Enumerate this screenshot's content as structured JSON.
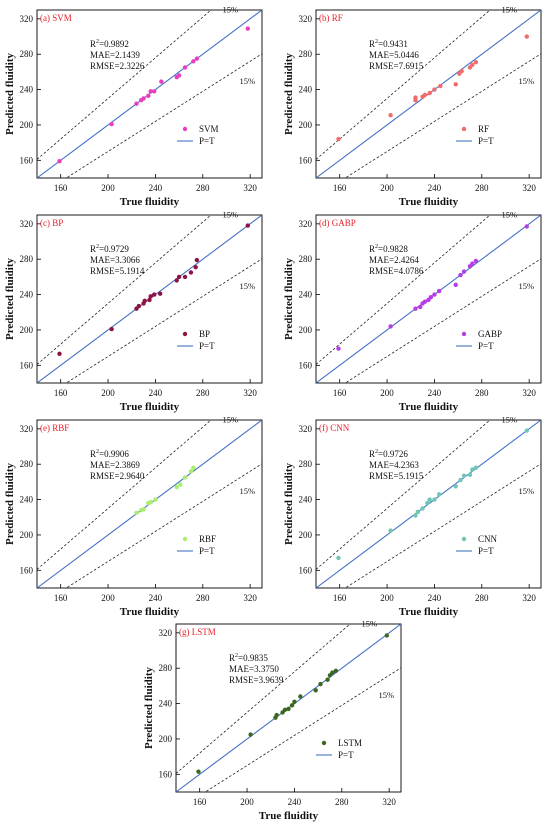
{
  "common": {
    "xlabel": "True fluidity",
    "ylabel": "Predicted fluidity",
    "xlim": [
      140,
      330
    ],
    "ylim": [
      140,
      330
    ],
    "ticks": [
      160,
      200,
      240,
      280,
      320
    ],
    "band_label": "15%",
    "fit_label": "P=T",
    "fit_color": "#4472c4",
    "band_color": "#222222",
    "title_color": "#e8202a",
    "grid": false,
    "legend_position": "bottom-right",
    "stats_position": "top-left"
  },
  "chart_data": [
    {
      "type": "scatter",
      "title": "(a) SVM",
      "stats": [
        "R²=0.9892",
        "MAE=2.1439",
        "RMSE=2.3226"
      ],
      "series": [
        {
          "name": "SVM",
          "color": "#e83fbf",
          "points": [
            [
              159,
              159
            ],
            [
              203,
              201
            ],
            [
              224,
              224
            ],
            [
              228,
              228
            ],
            [
              230,
              230
            ],
            [
              234,
              233
            ],
            [
              236,
              238
            ],
            [
              239,
              238
            ],
            [
              245,
              249
            ],
            [
              258,
              254
            ],
            [
              260,
              256
            ],
            [
              265,
              265
            ],
            [
              272,
              272
            ],
            [
              275,
              275
            ],
            [
              318,
              309
            ]
          ]
        },
        {
          "name": "P=T",
          "kind": "line"
        }
      ]
    },
    {
      "type": "scatter",
      "title": "(b) RF",
      "stats": [
        "R²=0.9431",
        "MAE=5.0446",
        "RMSE=7.6915"
      ],
      "series": [
        {
          "name": "RF",
          "color": "#f26b6b",
          "points": [
            [
              159,
              184
            ],
            [
              203,
              211
            ],
            [
              224,
              228
            ],
            [
              224,
              231
            ],
            [
              230,
              232
            ],
            [
              232,
              234
            ],
            [
              236,
              236
            ],
            [
              240,
              240
            ],
            [
              245,
              244
            ],
            [
              258,
              246
            ],
            [
              261,
              258
            ],
            [
              263,
              261
            ],
            [
              270,
              265
            ],
            [
              272,
              268
            ],
            [
              275,
              271
            ],
            [
              318,
              300
            ]
          ]
        },
        {
          "name": "P=T",
          "kind": "line"
        }
      ]
    },
    {
      "type": "scatter",
      "title": "(c) BP",
      "stats": [
        "R²=0.9729",
        "MAE=3.3066",
        "RMSE=5.1914"
      ],
      "series": [
        {
          "name": "BP",
          "color": "#8b1346",
          "points": [
            [
              159,
              173
            ],
            [
              203,
              201
            ],
            [
              224,
              224
            ],
            [
              226,
              227
            ],
            [
              230,
              230
            ],
            [
              231,
              233
            ],
            [
              235,
              234
            ],
            [
              236,
              238
            ],
            [
              239,
              240
            ],
            [
              244,
              241
            ],
            [
              258,
              256
            ],
            [
              260,
              260
            ],
            [
              265,
              260
            ],
            [
              270,
              265
            ],
            [
              274,
              271
            ],
            [
              275,
              279
            ],
            [
              318,
              318
            ]
          ]
        },
        {
          "name": "P=T",
          "kind": "line"
        }
      ]
    },
    {
      "type": "scatter",
      "title": "(d) GABP",
      "stats": [
        "R²=0.9828",
        "MAE=2.4264",
        "RMSE=4.0786"
      ],
      "series": [
        {
          "name": "GABP",
          "color": "#b83be8",
          "points": [
            [
              159,
              179
            ],
            [
              203,
              204
            ],
            [
              224,
              224
            ],
            [
              228,
              226
            ],
            [
              230,
              230
            ],
            [
              232,
              232
            ],
            [
              235,
              234
            ],
            [
              237,
              237
            ],
            [
              240,
              240
            ],
            [
              244,
              244
            ],
            [
              258,
              251
            ],
            [
              262,
              262
            ],
            [
              265,
              266
            ],
            [
              270,
              272
            ],
            [
              272,
              275
            ],
            [
              275,
              278
            ],
            [
              318,
              317
            ]
          ]
        },
        {
          "name": "P=T",
          "kind": "line"
        }
      ]
    },
    {
      "type": "scatter",
      "title": "(e) RBF",
      "stats": [
        "R²=0.9906",
        "MAE=2.3869",
        "RMSE=2.9640"
      ],
      "series": [
        {
          "name": "RBF",
          "color": "#a9ee6f",
          "points": [
            [
              224,
              225
            ],
            [
              228,
              228
            ],
            [
              230,
              229
            ],
            [
              234,
              236
            ],
            [
              236,
              237
            ],
            [
              240,
              240
            ],
            [
              258,
              254
            ],
            [
              261,
              257
            ],
            [
              265,
              265
            ],
            [
              270,
              272
            ],
            [
              272,
              276
            ]
          ]
        },
        {
          "name": "P=T",
          "kind": "line"
        }
      ]
    },
    {
      "type": "scatter",
      "title": "(f) CNN",
      "stats": [
        "R²=0.9726",
        "MAE=4.2363",
        "RMSE=5.1915"
      ],
      "series": [
        {
          "name": "CNN",
          "color": "#6fc6b4",
          "points": [
            [
              159,
              174
            ],
            [
              203,
              205
            ],
            [
              224,
              222
            ],
            [
              226,
              226
            ],
            [
              230,
              230
            ],
            [
              234,
              236
            ],
            [
              236,
              240
            ],
            [
              240,
              240
            ],
            [
              244,
              246
            ],
            [
              258,
              255
            ],
            [
              262,
              262
            ],
            [
              265,
              267
            ],
            [
              270,
              268
            ],
            [
              272,
              274
            ],
            [
              275,
              276
            ],
            [
              318,
              318
            ]
          ]
        },
        {
          "name": "P=T",
          "kind": "line"
        }
      ]
    },
    {
      "type": "scatter",
      "title": "(g) LSTM",
      "stats": [
        "R²=0.9835",
        "MAE=3.3750",
        "RMSE=3.9639"
      ],
      "series": [
        {
          "name": "LSTM",
          "color": "#3d6620",
          "points": [
            [
              159,
              163
            ],
            [
              203,
              205
            ],
            [
              224,
              224
            ],
            [
              225,
              227
            ],
            [
              230,
              230
            ],
            [
              232,
              233
            ],
            [
              235,
              234
            ],
            [
              238,
              238
            ],
            [
              240,
              242
            ],
            [
              245,
              248
            ],
            [
              258,
              255
            ],
            [
              262,
              262
            ],
            [
              268,
              267
            ],
            [
              270,
              272
            ],
            [
              272,
              275
            ],
            [
              275,
              277
            ],
            [
              318,
              317
            ]
          ]
        },
        {
          "name": "P=T",
          "kind": "line"
        }
      ]
    }
  ]
}
